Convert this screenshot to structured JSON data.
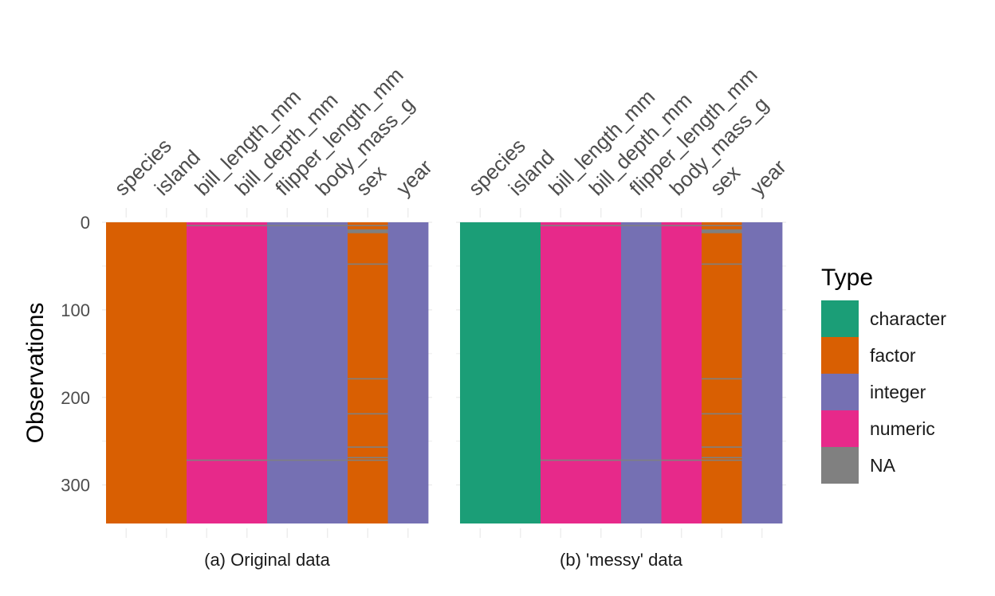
{
  "chart_data": {
    "type": "heatmap",
    "ylabel": "Observations",
    "ylim": [
      0,
      344
    ],
    "y_reversed": true,
    "y_ticks": [
      0,
      100,
      200,
      300
    ],
    "n_observations": 344,
    "na_rows": {
      "bill_length_mm": [
        4,
        272
      ],
      "bill_depth_mm": [
        4,
        272
      ],
      "flipper_length_mm": [
        4,
        272
      ],
      "body_mass_g": [
        4,
        272
      ],
      "sex": [
        4,
        9,
        10,
        11,
        12,
        48,
        179,
        219,
        257,
        269,
        272
      ]
    },
    "colors": {
      "character": "#1b9e77",
      "factor": "#d95f02",
      "integer": "#7570b3",
      "numeric": "#e7298a",
      "NA": "#808080"
    },
    "legend": {
      "title": "Type",
      "position": "right",
      "items": [
        "character",
        "factor",
        "integer",
        "numeric",
        "NA"
      ]
    },
    "panels": [
      {
        "title": "(a) Original data",
        "columns": [
          {
            "name": "species",
            "type": "factor"
          },
          {
            "name": "island",
            "type": "factor"
          },
          {
            "name": "bill_length_mm",
            "type": "numeric"
          },
          {
            "name": "bill_depth_mm",
            "type": "numeric"
          },
          {
            "name": "flipper_length_mm",
            "type": "integer"
          },
          {
            "name": "body_mass_g",
            "type": "integer"
          },
          {
            "name": "sex",
            "type": "factor"
          },
          {
            "name": "year",
            "type": "integer"
          }
        ]
      },
      {
        "title": "(b) 'messy' data",
        "columns": [
          {
            "name": "species",
            "type": "character"
          },
          {
            "name": "island",
            "type": "character"
          },
          {
            "name": "bill_length_mm",
            "type": "numeric"
          },
          {
            "name": "bill_depth_mm",
            "type": "numeric"
          },
          {
            "name": "flipper_length_mm",
            "type": "integer"
          },
          {
            "name": "body_mass_g",
            "type": "numeric"
          },
          {
            "name": "sex",
            "type": "factor"
          },
          {
            "name": "year",
            "type": "integer"
          }
        ]
      }
    ]
  }
}
